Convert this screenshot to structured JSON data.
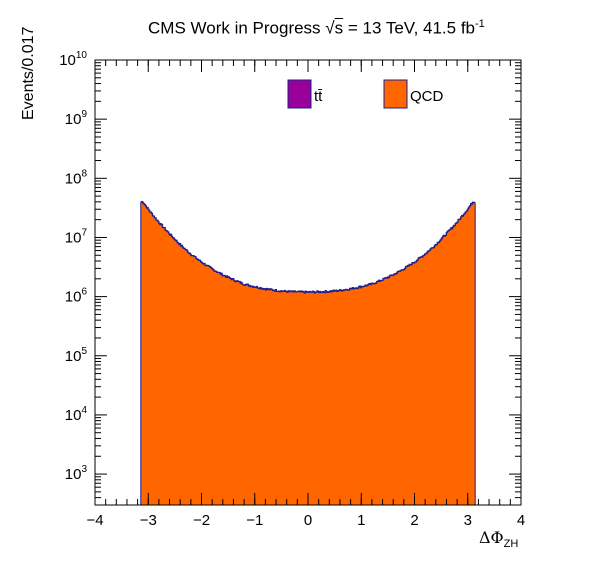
{
  "chart_data": {
    "type": "area",
    "title_prefix": "CMS Work in Progress",
    "title_sqrt_symbol": "√",
    "title_sqrt_var": "s",
    "title_energy": " = 13 TeV, 41.5 fb",
    "title_lumi_exponent": "-1",
    "ylabel": "Events/0.017",
    "xlabel_main": "ΔΦ",
    "xlabel_sub": "ZH",
    "y_scale": "log",
    "ylim": [
      300,
      10000000000.0
    ],
    "xlim": [
      -4,
      4
    ],
    "x_ticks": [
      "−4",
      "−3",
      "−2",
      "−1",
      "0",
      "1",
      "2",
      "3",
      "4"
    ],
    "x_tick_values": [
      -4,
      -3,
      -2,
      -1,
      0,
      1,
      2,
      3,
      4
    ],
    "y_tick_exponents": [
      3,
      4,
      5,
      6,
      7,
      8,
      9,
      10
    ],
    "y_tick_base": "10",
    "legend": [
      {
        "name": "tt̄",
        "color": "#990099"
      },
      {
        "name": "QCD",
        "color": "#ff6600"
      }
    ],
    "series": [
      {
        "name": "QCD",
        "color": "#ff6600",
        "stack_order": 1,
        "x": [
          -3.14,
          -3.1,
          -3.0,
          -2.8,
          -2.6,
          -2.4,
          -2.2,
          -2.0,
          -1.8,
          -1.6,
          -1.4,
          -1.2,
          -1.0,
          -0.8,
          -0.6,
          -0.4,
          -0.2,
          0.0,
          0.2,
          0.4,
          0.6,
          0.8,
          1.0,
          1.2,
          1.4,
          1.6,
          1.8,
          2.0,
          2.2,
          2.4,
          2.6,
          2.8,
          3.0,
          3.1,
          3.14
        ],
        "values": [
          40000000.0,
          40000000.0,
          30000000.0,
          18000000.0,
          11500000.0,
          7500000.0,
          5200000.0,
          3800000.0,
          2900000.0,
          2300000.0,
          1900000.0,
          1600000.0,
          1450000.0,
          1330000.0,
          1250000.0,
          1200000.0,
          1180000.0,
          1170000.0,
          1180000.0,
          1200000.0,
          1250000.0,
          1330000.0,
          1450000.0,
          1600000.0,
          1900000.0,
          2300000.0,
          2900000.0,
          3800000.0,
          5200000.0,
          7500000.0,
          11500000.0,
          18000000.0,
          30000000.0,
          40000000.0,
          40000000.0
        ]
      },
      {
        "name": "tt̄",
        "color": "#990099",
        "stack_order": 2,
        "x": [
          -3.14,
          -3.0,
          -2.0,
          -1.0,
          0.0,
          1.0,
          2.0,
          3.0,
          3.14
        ],
        "values": [
          120000.0,
          90000.0,
          40000.0,
          25000.0,
          20000.0,
          25000.0,
          40000.0,
          90000.0,
          120000.0
        ]
      }
    ],
    "grid": false,
    "legend_placement": "top-center"
  }
}
